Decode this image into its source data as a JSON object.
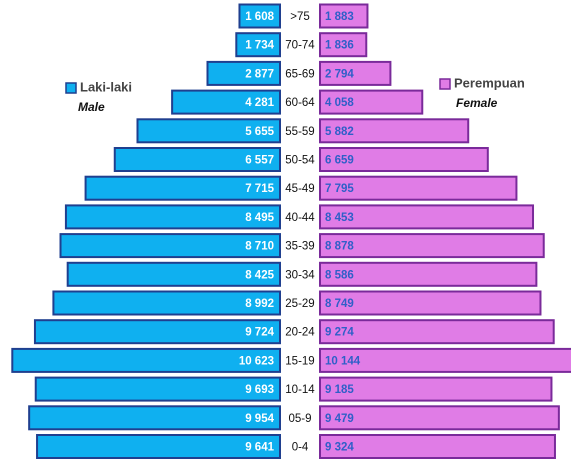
{
  "chart_data": {
    "type": "pyramid",
    "categories": [
      ">75",
      "70-74",
      "65-69",
      "60-64",
      "55-59",
      "50-54",
      "45-49",
      "40-44",
      "35-39",
      "30-34",
      "25-29",
      "20-24",
      "15-19",
      "10-14",
      "05-9",
      "0-4"
    ],
    "series": [
      {
        "name": "Laki-laki",
        "translation": "Male",
        "color": "#0fb0f0",
        "border_color": "#1f3f8f",
        "label_color": "#ffffff",
        "values": [
          1608,
          1734,
          2877,
          4281,
          5655,
          6557,
          7715,
          8495,
          8710,
          8425,
          8992,
          9724,
          10623,
          9693,
          9954,
          9641
        ],
        "value_labels": [
          "1 608",
          "1 734",
          "2 877",
          "4 281",
          "5 655",
          "6 557",
          "7 715",
          "8 495",
          "8 710",
          "8 425",
          "8 992",
          "9 724",
          "10 623",
          "9 693",
          "9 954",
          "9 641"
        ]
      },
      {
        "name": "Perempuan",
        "translation": "Female",
        "color": "#e07ce6",
        "border_color": "#7a2a9a",
        "label_color": "#2f5fc8",
        "values": [
          1883,
          1836,
          2794,
          4058,
          5882,
          6659,
          7795,
          8453,
          8878,
          8586,
          8749,
          9274,
          10144,
          9185,
          9479,
          9324
        ],
        "value_labels": [
          "1 883",
          "1 836",
          "2 794",
          "4 058",
          "5 882",
          "6 659",
          "7 795",
          "8 453",
          "8 878",
          "8 586",
          "8 749",
          "9 274",
          "10 144",
          "9 185",
          "9 479",
          "9 324"
        ]
      }
    ]
  }
}
